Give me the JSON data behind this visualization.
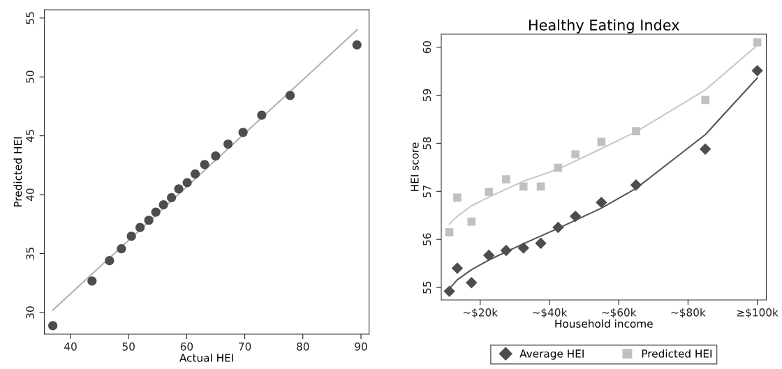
{
  "chart_data": [
    {
      "type": "scatter",
      "xlabel": "Actual HEI",
      "ylabel": "Predicted HEI",
      "xlim": [
        35.5,
        91.4
      ],
      "ylim": [
        28.16,
        55.7
      ],
      "xticks": [
        40,
        50,
        60,
        70,
        80,
        90
      ],
      "yticks": [
        30,
        35,
        40,
        45,
        50,
        55
      ],
      "grid": false,
      "legend": false,
      "series": [
        {
          "color": "#4d4d4d",
          "marker": "circle",
          "x": [
            36.95,
            43.7,
            46.7,
            48.76,
            50.47,
            51.97,
            53.48,
            54.68,
            56.0,
            57.38,
            58.63,
            60.09,
            61.46,
            63.09,
            64.98,
            67.12,
            69.7,
            72.92,
            77.81,
            89.31
          ],
          "values": [
            28.88,
            32.67,
            34.4,
            35.41,
            36.47,
            37.21,
            37.83,
            38.52,
            39.14,
            39.75,
            40.49,
            41.02,
            41.76,
            42.56,
            43.28,
            44.3,
            45.29,
            46.75,
            48.42,
            52.72
          ]
        },
        {
          "type": "line",
          "color": "#b0b0b0",
          "marker": "none",
          "x": [
            36.95,
            89.35
          ],
          "values": [
            30.2,
            54.0
          ]
        }
      ]
    },
    {
      "type": "scatter",
      "title": "Healthy Eating Index",
      "xlabel": "Household income",
      "ylabel": "HEI score",
      "xlim": [
        8.77,
        102.6
      ],
      "ylim": [
        54.74,
        60.27
      ],
      "xticks": [
        {
          "value": 20,
          "label": "~$20k"
        },
        {
          "value": 40,
          "label": "~$40k"
        },
        {
          "value": 60,
          "label": "~$60k"
        },
        {
          "value": 80,
          "label": "~$80k"
        },
        {
          "value": 100,
          "label": "≥$100k"
        }
      ],
      "yticks": [
        55,
        56,
        57,
        58,
        59,
        60
      ],
      "grid": false,
      "legend": "bottom",
      "x": [
        11.1,
        13.4,
        17.5,
        22.5,
        27.5,
        32.5,
        37.5,
        42.5,
        47.5,
        55,
        65,
        85,
        100
      ],
      "series": [
        {
          "name": "Average HEI",
          "color": "#4d4d4d",
          "marker": "diamond",
          "values": [
            54.92,
            55.4,
            55.1,
            55.67,
            55.77,
            55.82,
            55.92,
            56.25,
            56.48,
            56.77,
            57.13,
            57.88,
            59.51
          ]
        },
        {
          "name": "Predicted HEI",
          "color": "#c0c0c0",
          "marker": "square",
          "values": [
            56.15,
            56.87,
            56.37,
            56.99,
            57.25,
            57.1,
            57.1,
            57.49,
            57.77,
            58.03,
            58.25,
            58.9,
            60.1
          ]
        },
        {
          "type": "line",
          "color": "#555555",
          "marker": "none",
          "x": [
            11.1,
            13.4,
            17.5,
            22.5,
            32.5,
            42.5,
            55,
            65,
            85,
            100
          ],
          "values": [
            54.97,
            55.16,
            55.37,
            55.57,
            55.91,
            56.23,
            56.65,
            57.06,
            58.18,
            59.36
          ]
        },
        {
          "type": "line",
          "color": "#c8c8c8",
          "marker": "none",
          "x": [
            11.1,
            13.4,
            17.5,
            22.5,
            32.5,
            42.5,
            55,
            65,
            85,
            100
          ],
          "values": [
            56.32,
            56.48,
            56.7,
            56.88,
            57.21,
            57.46,
            57.89,
            58.24,
            59.11,
            60.04
          ]
        }
      ]
    }
  ]
}
